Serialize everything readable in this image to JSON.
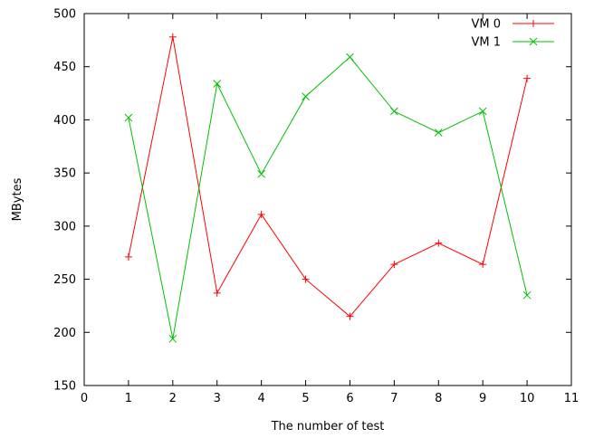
{
  "chart_data": {
    "type": "line",
    "xlabel": "The number of test",
    "ylabel": "MBytes",
    "xlim": [
      0,
      11
    ],
    "ylim": [
      150,
      500
    ],
    "x_ticks": [
      0,
      1,
      2,
      3,
      4,
      5,
      6,
      7,
      8,
      9,
      10,
      11
    ],
    "y_ticks": [
      150,
      200,
      250,
      300,
      350,
      400,
      450,
      500
    ],
    "grid": false,
    "legend_position": "top-right",
    "x": [
      1,
      2,
      3,
      4,
      5,
      6,
      7,
      8,
      9,
      10
    ],
    "series": [
      {
        "name": "VM 0",
        "color": "#ff0000",
        "marker": "plus",
        "values": [
          271,
          478,
          237,
          311,
          250,
          215,
          264,
          284,
          264,
          439
        ]
      },
      {
        "name": "VM 1",
        "color": "#00c000",
        "marker": "cross",
        "values": [
          402,
          194,
          434,
          349,
          422,
          459,
          408,
          388,
          408,
          235
        ]
      }
    ]
  }
}
